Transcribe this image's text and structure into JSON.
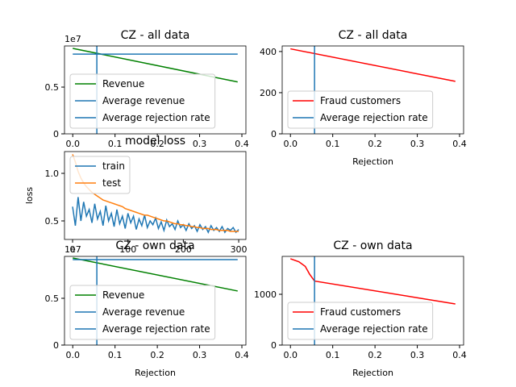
{
  "chart_data": [
    {
      "type": "line",
      "title": "CZ - all data",
      "y_offset_label": "1e7",
      "legend": "lower left",
      "xlim": [
        -0.0195,
        0.4095
      ],
      "ylim": [
        0,
        0.94
      ],
      "xticks": [
        {
          "value": 0,
          "label": "0.0"
        },
        0.1,
        0.2,
        0.3,
        0.4
      ],
      "yticks": [
        0,
        0.5
      ],
      "series": [
        {
          "name": "Revenue",
          "color": "#008000",
          "x": [
            0,
            0.39
          ],
          "values": [
            0.914,
            0.555
          ]
        },
        {
          "name": "Average revenue",
          "color": "#1f77b4",
          "x": [
            0,
            0.39
          ],
          "values": [
            0.853,
            0.853
          ]
        }
      ],
      "vline": {
        "name": "Average rejection rate",
        "color": "#1f77b4",
        "x": 0.057
      }
    },
    {
      "type": "line",
      "title": "CZ - all data",
      "xlabel": "Rejection",
      "legend": "lower left",
      "xlim": [
        -0.0195,
        0.4095
      ],
      "ylim": [
        0,
        427
      ],
      "xticks": [
        {
          "value": 0,
          "label": "0.0"
        },
        0.1,
        0.2,
        0.3,
        0.4
      ],
      "yticks": [
        0,
        200,
        400
      ],
      "series": [
        {
          "name": "Fraud customers",
          "color": "#ff0000",
          "x": [
            0,
            0.39
          ],
          "values": [
            413,
            255
          ]
        }
      ],
      "vline": {
        "name": "Average rejection rate",
        "color": "#1f77b4",
        "x": 0.057
      }
    },
    {
      "type": "line",
      "title": "model loss",
      "ylabel": "loss",
      "legend": "upper left",
      "xlim": [
        -14.6,
        313
      ],
      "ylim": [
        0.305,
        1.229
      ],
      "xticks": [
        0,
        100,
        200,
        300
      ],
      "yticks": [
        0.5,
        {
          "value": 1.0,
          "label": "1.0"
        }
      ],
      "series": [
        {
          "name": "train",
          "color": "#1f77b4",
          "x": [
            0,
            5,
            10,
            15,
            20,
            25,
            30,
            35,
            40,
            45,
            50,
            55,
            60,
            65,
            70,
            75,
            80,
            85,
            90,
            95,
            100,
            105,
            110,
            115,
            120,
            125,
            130,
            135,
            140,
            145,
            150,
            155,
            160,
            165,
            170,
            175,
            180,
            185,
            190,
            195,
            200,
            205,
            210,
            215,
            220,
            225,
            230,
            235,
            240,
            245,
            250,
            255,
            260,
            265,
            270,
            275,
            280,
            285,
            290,
            295,
            300
          ],
          "values": [
            0.65,
            0.45,
            0.75,
            0.5,
            0.7,
            0.55,
            0.62,
            0.48,
            0.68,
            0.52,
            0.6,
            0.45,
            0.66,
            0.5,
            0.58,
            0.44,
            0.62,
            0.47,
            0.55,
            0.42,
            0.58,
            0.48,
            0.55,
            0.41,
            0.52,
            0.45,
            0.56,
            0.43,
            0.5,
            0.46,
            0.53,
            0.42,
            0.49,
            0.4,
            0.51,
            0.44,
            0.47,
            0.41,
            0.5,
            0.43,
            0.46,
            0.4,
            0.47,
            0.42,
            0.45,
            0.39,
            0.46,
            0.41,
            0.44,
            0.38,
            0.45,
            0.4,
            0.43,
            0.39,
            0.44,
            0.38,
            0.42,
            0.4,
            0.43,
            0.38,
            0.41
          ]
        },
        {
          "name": "test",
          "color": "#ff7f0e",
          "x": [
            0,
            5,
            10,
            15,
            20,
            25,
            30,
            35,
            40,
            45,
            50,
            55,
            60,
            65,
            70,
            75,
            80,
            85,
            90,
            95,
            100,
            105,
            110,
            115,
            120,
            125,
            130,
            135,
            140,
            145,
            150,
            155,
            160,
            165,
            170,
            175,
            180,
            185,
            190,
            195,
            200,
            205,
            210,
            215,
            220,
            225,
            230,
            235,
            240,
            245,
            250,
            255,
            260,
            265,
            270,
            275,
            280,
            285,
            290,
            295,
            300
          ],
          "values": [
            1.2,
            1.12,
            1.02,
            0.95,
            0.9,
            0.86,
            0.83,
            0.8,
            0.78,
            0.76,
            0.74,
            0.72,
            0.71,
            0.7,
            0.69,
            0.68,
            0.67,
            0.66,
            0.65,
            0.63,
            0.62,
            0.61,
            0.6,
            0.59,
            0.58,
            0.57,
            0.56,
            0.56,
            0.55,
            0.54,
            0.53,
            0.52,
            0.51,
            0.5,
            0.5,
            0.49,
            0.48,
            0.47,
            0.47,
            0.46,
            0.46,
            0.45,
            0.45,
            0.44,
            0.44,
            0.43,
            0.43,
            0.42,
            0.42,
            0.42,
            0.41,
            0.41,
            0.41,
            0.4,
            0.4,
            0.4,
            0.4,
            0.39,
            0.39,
            0.39,
            0.39
          ]
        }
      ]
    },
    {
      "type": "line",
      "title": "CZ - own data",
      "xlabel": "Rejection",
      "y_offset_label": "1e7",
      "legend": "lower left",
      "xlim": [
        -0.0195,
        0.4095
      ],
      "ylim": [
        0,
        0.948
      ],
      "xticks": [
        {
          "value": 0,
          "label": "0.0"
        },
        0.1,
        0.2,
        0.3,
        0.4
      ],
      "yticks": [
        0,
        0.5
      ],
      "series": [
        {
          "name": "Revenue",
          "color": "#008000",
          "x": [
            0,
            0.39
          ],
          "values": [
            0.931,
            0.578
          ]
        },
        {
          "name": "Average revenue",
          "color": "#1f77b4",
          "x": [
            0,
            0.39
          ],
          "values": [
            0.914,
            0.914
          ]
        }
      ],
      "vline": {
        "name": "Average rejection rate",
        "color": "#1f77b4",
        "x": 0.057
      }
    },
    {
      "type": "line",
      "title": "CZ - own data",
      "xlabel": "Rejection",
      "legend": "lower left",
      "xlim": [
        -0.0195,
        0.4095
      ],
      "ylim": [
        0,
        1746
      ],
      "xticks": [
        {
          "value": 0,
          "label": "0.0"
        },
        0.1,
        0.2,
        0.3,
        0.4
      ],
      "yticks": [
        0,
        1000
      ],
      "series": [
        {
          "name": "Fraud customers",
          "color": "#ff0000",
          "x": [
            0,
            0.02,
            0.035,
            0.045,
            0.057,
            0.39
          ],
          "values": [
            1700,
            1640,
            1550,
            1400,
            1260,
            810
          ]
        }
      ],
      "vline": {
        "name": "Average rejection rate",
        "color": "#1f77b4",
        "x": 0.057
      }
    }
  ]
}
